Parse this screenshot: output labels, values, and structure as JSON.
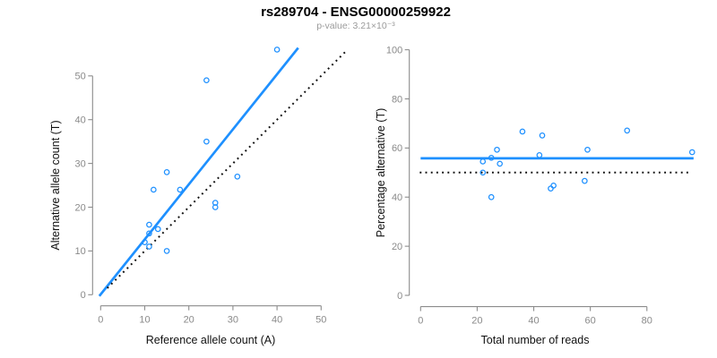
{
  "title": "rs289704 - ENSG00000259922",
  "subtitle": "p-value: 3.21×10⁻³",
  "p_value": "3.21×10⁻³",
  "snp_id": "rs289704",
  "gene_id": "ENSG00000259922",
  "colors": {
    "accent_blue": "#1E90FF",
    "dotted_black": "#111111",
    "axis_gray": "#8c8c8c",
    "tick_label_gray": "#8a8a8a",
    "title_black": "#000000",
    "subtitle_gray": "#9b9b9b"
  },
  "chart_data": [
    {
      "type": "scatter",
      "name": "allele-counts-scatter",
      "xlabel": "Reference allele count (A)",
      "ylabel": "Alternative allele count (T)",
      "xticks": [
        0,
        10,
        20,
        30,
        40,
        50
      ],
      "yticks": [
        0,
        10,
        20,
        30,
        40,
        50
      ],
      "xlim": [
        0,
        50
      ],
      "ylim": [
        0,
        56
      ],
      "grid": false,
      "legend": "none",
      "points": [
        {
          "x": 40,
          "y": 56
        },
        {
          "x": 24,
          "y": 49
        },
        {
          "x": 24,
          "y": 35
        },
        {
          "x": 15,
          "y": 28
        },
        {
          "x": 31,
          "y": 27
        },
        {
          "x": 12,
          "y": 24
        },
        {
          "x": 18,
          "y": 24
        },
        {
          "x": 26,
          "y": 21
        },
        {
          "x": 26,
          "y": 20
        },
        {
          "x": 11,
          "y": 16
        },
        {
          "x": 13,
          "y": 15
        },
        {
          "x": 11,
          "y": 14
        },
        {
          "x": 10,
          "y": 12
        },
        {
          "x": 11,
          "y": 11
        },
        {
          "x": 15,
          "y": 10
        }
      ],
      "lines": [
        {
          "name": "regression-line",
          "style": "solid",
          "color": "blue",
          "x1": -0.3,
          "y1": -0.3,
          "x2": 44.8,
          "y2": 56.4
        },
        {
          "name": "identity-line",
          "style": "dotted",
          "color": "black",
          "x1": 1.5,
          "y1": 1.5,
          "x2": 55.8,
          "y2": 55.8
        }
      ]
    },
    {
      "type": "scatter",
      "name": "percentage-vs-coverage-scatter",
      "xlabel": "Total number of reads",
      "ylabel": "Percentage alternative (T)",
      "xticks": [
        0,
        20,
        40,
        60,
        80
      ],
      "yticks": [
        0,
        20,
        40,
        60,
        80,
        100
      ],
      "xlim": [
        0,
        96
      ],
      "ylim": [
        0,
        100
      ],
      "grid": false,
      "legend": "none",
      "points": [
        {
          "x": 96,
          "y": 58.3
        },
        {
          "x": 73,
          "y": 67.1
        },
        {
          "x": 59,
          "y": 59.3
        },
        {
          "x": 43,
          "y": 65.1
        },
        {
          "x": 58,
          "y": 46.6
        },
        {
          "x": 36,
          "y": 66.7
        },
        {
          "x": 42,
          "y": 57.1
        },
        {
          "x": 47,
          "y": 44.7
        },
        {
          "x": 46,
          "y": 43.5
        },
        {
          "x": 27,
          "y": 59.3
        },
        {
          "x": 28,
          "y": 53.6
        },
        {
          "x": 25,
          "y": 56.0
        },
        {
          "x": 22,
          "y": 54.5
        },
        {
          "x": 22,
          "y": 50.0
        },
        {
          "x": 25,
          "y": 40.0
        }
      ],
      "lines": [
        {
          "name": "mean-percentage-line",
          "style": "solid",
          "color": "blue",
          "x1": 0,
          "y1": 55.8,
          "x2": 96.5,
          "y2": 55.8
        },
        {
          "name": "fifty-percent-line",
          "style": "dotted",
          "color": "black",
          "x1": -0.3,
          "y1": 50,
          "x2": 95,
          "y2": 50
        }
      ]
    }
  ]
}
